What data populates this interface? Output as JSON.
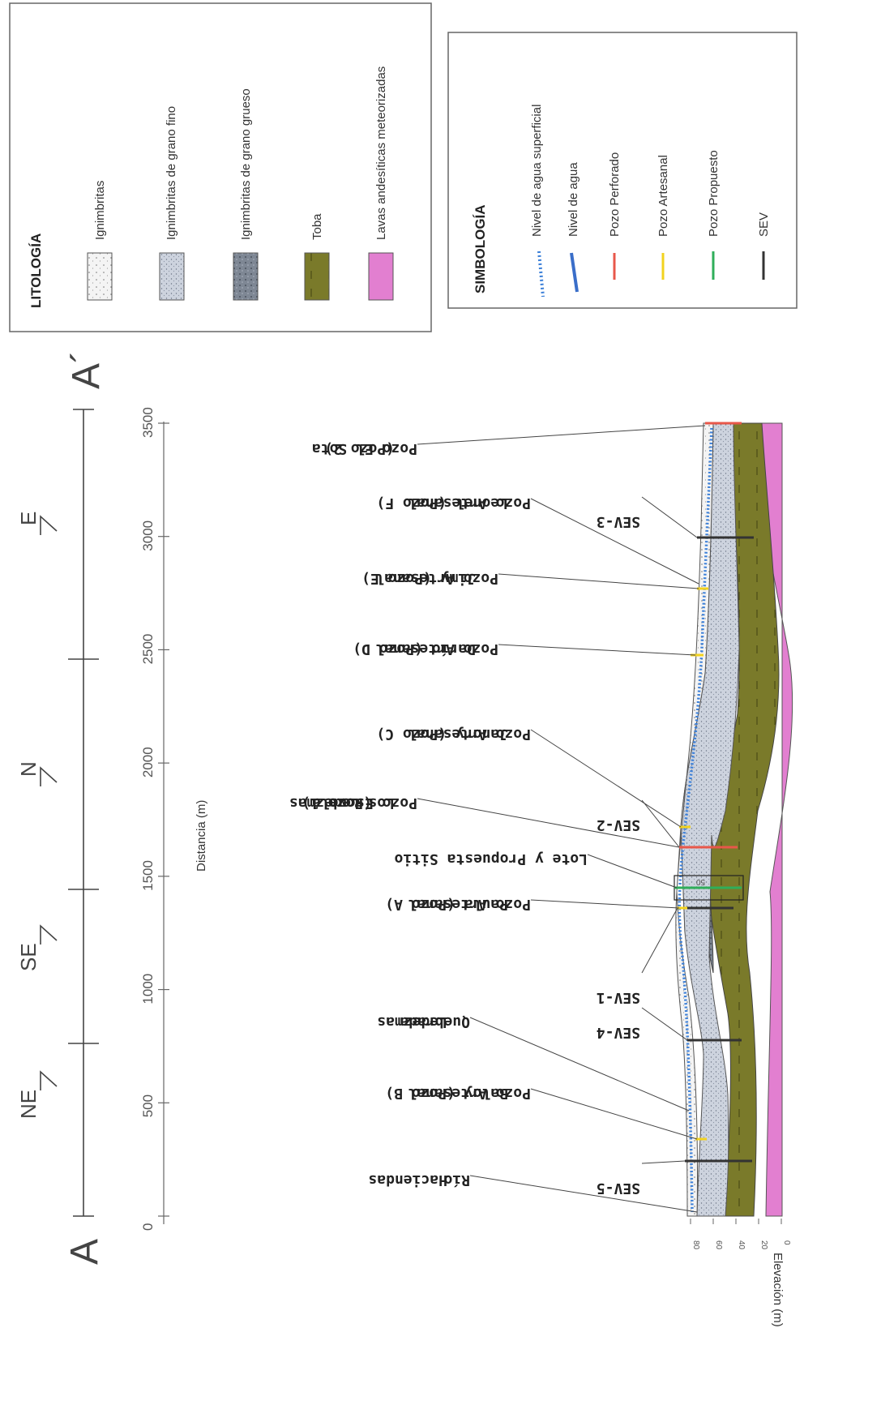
{
  "section": {
    "start_label": "A",
    "end_label": "A´",
    "directions": [
      "NE",
      "SE",
      "N",
      "E"
    ],
    "distance_axis": {
      "label": "Distancia (m)",
      "ticks": [
        "0",
        "500",
        "1000",
        "1500",
        "2000",
        "2500",
        "3000",
        "3500"
      ]
    },
    "elevation_axis": {
      "label": "Elevación (m)",
      "ticks": [
        "80",
        "60",
        "40",
        "20",
        "0"
      ]
    }
  },
  "legend_lithology": {
    "title": "LITOLOGÍA",
    "items": [
      {
        "label": "Ignimbritas",
        "color": "#f4f4f4"
      },
      {
        "label": "Ignimbritas de grano fino",
        "color": "#cdd3de"
      },
      {
        "label": "Ignimbritas de grano grueso",
        "color": "#7e8794"
      },
      {
        "label": "Toba",
        "color": "#7a7a2a"
      },
      {
        "label": "Lavas andesíticas meteorizadas",
        "color": "#e27fd0"
      }
    ]
  },
  "legend_symbols": {
    "title": "SIMBOLOGÍA",
    "items": [
      {
        "label": "Nivel de agua superficial",
        "color": "#3b7fd8",
        "style": "dotted"
      },
      {
        "label": "Nivel de agua",
        "color": "#3a6ec9",
        "style": "solid"
      },
      {
        "label": "Pozo Perforado",
        "color": "#e8574a",
        "style": "solid"
      },
      {
        "label": "Pozo Artesanal",
        "color": "#f2d21e",
        "style": "solid"
      },
      {
        "label": "Pozo Propuesto",
        "color": "#2fae5a",
        "style": "solid"
      },
      {
        "label": "SEV",
        "color": "#333333",
        "style": "solid"
      }
    ]
  },
  "wells": [
    {
      "line1": "Río",
      "line2": "Haciendas",
      "line3": ""
    },
    {
      "line1": "Pozo Artesanal",
      "line2": "Baloy (Pozo B)",
      "line3": ""
    },
    {
      "line1": "Quebrada",
      "line2": "Ledezmas",
      "line3": ""
    },
    {
      "line1": "Pozo Artesanal",
      "line2": "Paula (Pozo A)",
      "line3": ""
    },
    {
      "line1": "Lote y Propuesta Sitio",
      "line2": "",
      "line3": ""
    },
    {
      "line1": "Pozo Escuela",
      "line2": "Los Ledezmas",
      "line3": "(Pozo 1)"
    },
    {
      "line1": "Pozo Artesanal",
      "line2": "Janory (Pozo C)",
      "line3": ""
    },
    {
      "line1": "Pozo Artesanal",
      "line2": "Darío (Pozo D)",
      "line3": ""
    },
    {
      "line1": "Pozo Artesanal",
      "line2": "Jimy (Pozo E)",
      "line3": ""
    },
    {
      "line1": "Pozo Artesanal",
      "line2": "Leonel (Pozo F)",
      "line3": ""
    },
    {
      "line1": "Pozo El Sota",
      "line2": "(Pozo 2)",
      "line3": ""
    }
  ],
  "sev": [
    "SEV-5",
    "SEV-4",
    "SEV-1",
    "SEV-2",
    "SEV-3"
  ],
  "marker_text": "50"
}
